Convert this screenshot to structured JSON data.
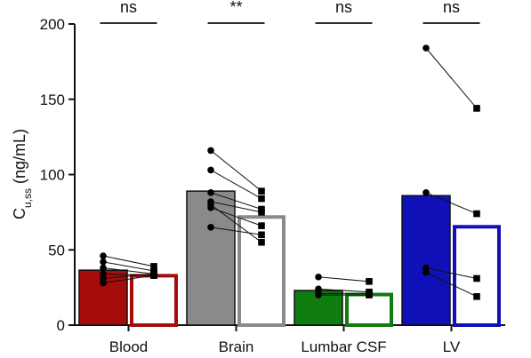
{
  "chart_data": {
    "type": "bar",
    "ylabel": {
      "main": "C",
      "subscript": "u,ss",
      "unit": " (ng/mL)"
    },
    "ylim": [
      0,
      200
    ],
    "yticks": [
      "0",
      "50",
      "100",
      "150",
      "200"
    ],
    "categories": [
      "Blood",
      "Brain",
      "Lumbar CSF",
      "LV"
    ],
    "significance": [
      "ns",
      "**",
      "ns",
      "ns"
    ],
    "colors": [
      "#a50d0d",
      "#8a8a8a",
      "#0e7c0e",
      "#1010b8"
    ],
    "series": [
      {
        "fill": "solid",
        "marker": "circle",
        "values": [
          36.5,
          89,
          23,
          86
        ]
      },
      {
        "fill": "open",
        "marker": "square",
        "values": [
          34,
          73,
          21.5,
          66.5
        ]
      }
    ],
    "pairs": [
      [
        [
          46,
          39
        ],
        [
          42,
          36
        ],
        [
          38,
          34
        ],
        [
          34,
          33
        ],
        [
          31,
          34
        ],
        [
          28,
          33
        ]
      ],
      [
        [
          116,
          89
        ],
        [
          103,
          84
        ],
        [
          88,
          77
        ],
        [
          82,
          75
        ],
        [
          78,
          66
        ],
        [
          65,
          60
        ],
        [
          80,
          55
        ]
      ],
      [
        [
          32,
          29
        ],
        [
          24,
          22
        ],
        [
          21,
          21
        ],
        [
          20,
          20
        ]
      ],
      [
        [
          184,
          144
        ],
        [
          88,
          74
        ],
        [
          38,
          31
        ],
        [
          35,
          19
        ]
      ]
    ]
  }
}
